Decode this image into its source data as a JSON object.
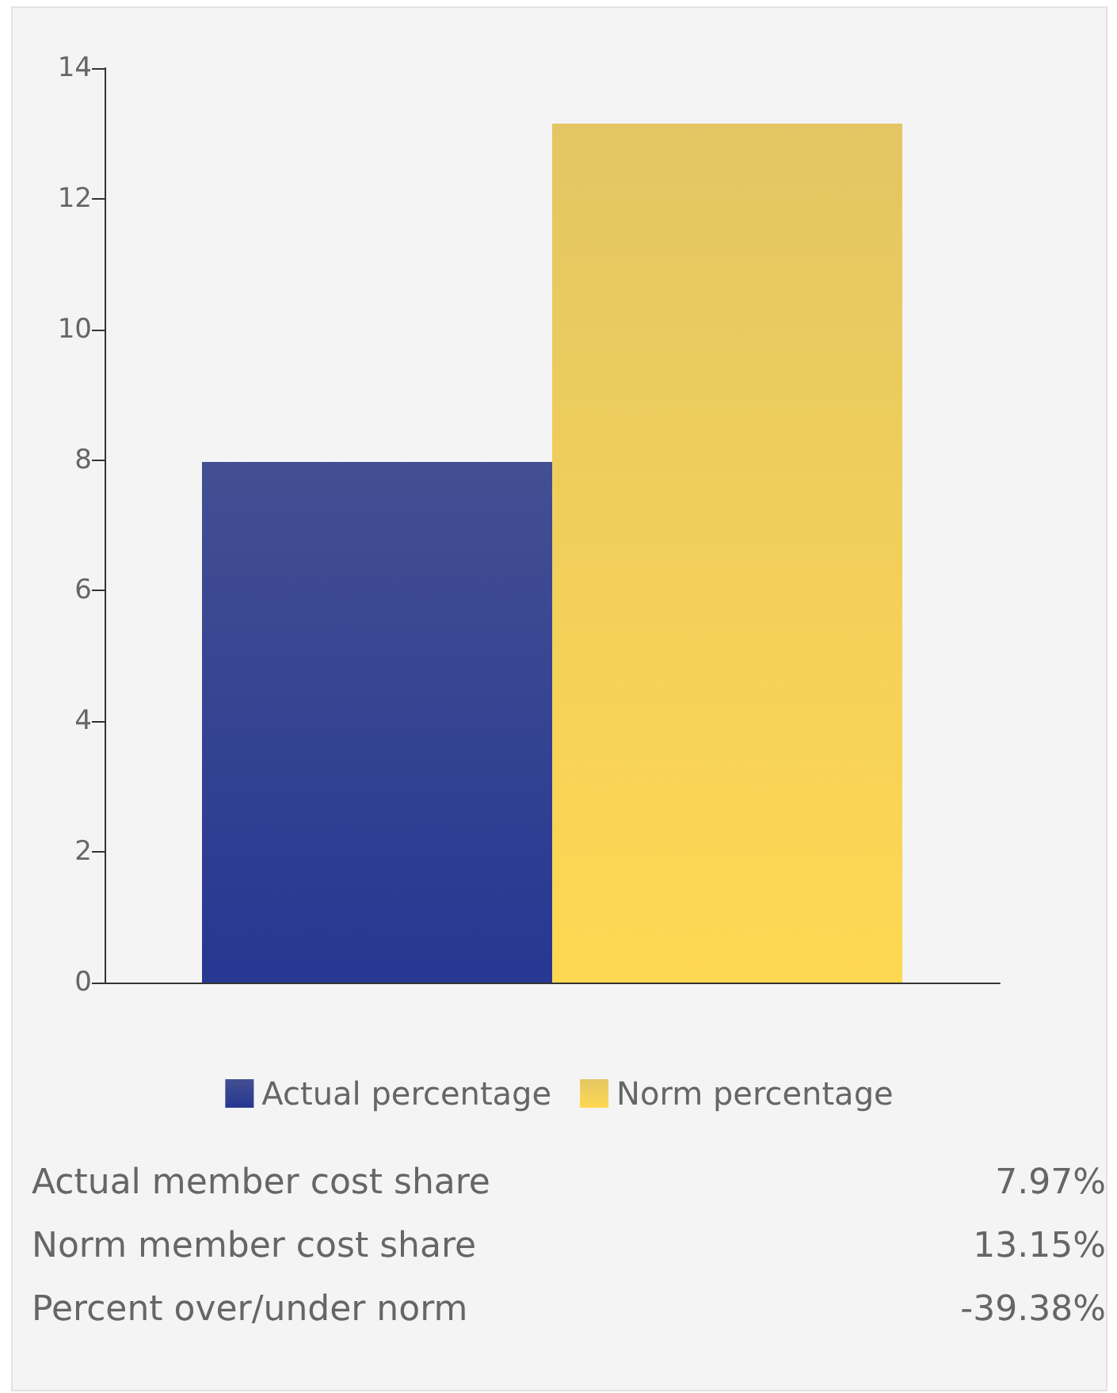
{
  "chart_data": {
    "type": "bar",
    "categories": [
      null
    ],
    "series": [
      {
        "name": "Actual percentage",
        "color": "#22307f",
        "values": [
          7.97
        ]
      },
      {
        "name": "Norm percentage",
        "color": "#dfbc48",
        "values": [
          13.15
        ]
      }
    ],
    "ylim": [
      0,
      14
    ],
    "yticks": [
      0,
      2,
      4,
      6,
      8,
      10,
      12,
      14
    ],
    "grid": false,
    "legend": "bottom",
    "annotations": [
      "Actual member cost share",
      "7.97%",
      "Norm member cost share",
      "13.15%",
      "Percent over/under norm",
      "-39.38%"
    ]
  }
}
